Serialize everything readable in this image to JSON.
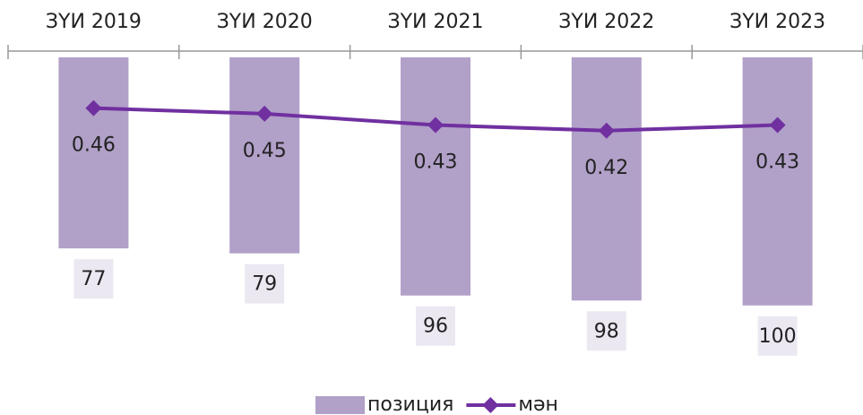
{
  "chart_data": {
    "type": "bar_line",
    "categories": [
      "ЗҮИ 2019",
      "ЗҮИ 2020",
      "ЗҮИ 2021",
      "ЗҮИ 2022",
      "ЗҮИ 2023"
    ],
    "series": [
      {
        "name": "позиция",
        "type": "bar",
        "color": "#b1a0c8",
        "values": [
          77,
          79,
          96,
          98,
          100
        ]
      },
      {
        "name": "мән",
        "type": "line",
        "axis": "y2",
        "color": "#7030a0",
        "values": [
          0.46,
          0.45,
          0.43,
          0.42,
          0.43
        ]
      }
    ],
    "ylim": [
      0,
      125
    ],
    "y_inverted": true,
    "y2lim": [
      0,
      0.55
    ],
    "legend": "bottom",
    "categories_position": "top"
  }
}
